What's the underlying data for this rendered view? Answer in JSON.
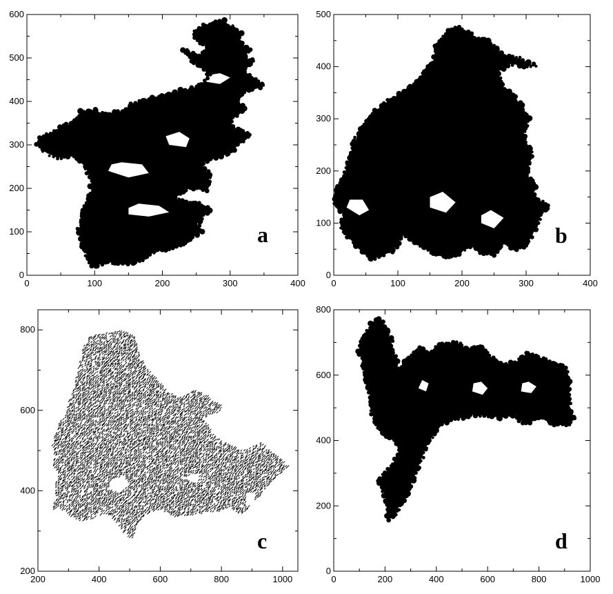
{
  "chart_data": [
    {
      "type": "scatter",
      "panel_label": "a",
      "xlim": [
        0,
        400
      ],
      "ylim": [
        0,
        600
      ],
      "x_ticks": [
        0,
        100,
        200,
        300,
        400
      ],
      "y_ticks": [
        0,
        100,
        200,
        300,
        400,
        500,
        600
      ],
      "x_minor_step": 50,
      "y_minor_step": 50,
      "color": "#000000",
      "outline": [
        [
          95,
          20
        ],
        [
          120,
          30
        ],
        [
          150,
          25
        ],
        [
          170,
          35
        ],
        [
          190,
          55
        ],
        [
          210,
          60
        ],
        [
          230,
          70
        ],
        [
          240,
          85
        ],
        [
          260,
          100
        ],
        [
          250,
          120
        ],
        [
          270,
          150
        ],
        [
          255,
          165
        ],
        [
          235,
          165
        ],
        [
          215,
          180
        ],
        [
          240,
          200
        ],
        [
          265,
          195
        ],
        [
          270,
          230
        ],
        [
          255,
          255
        ],
        [
          275,
          270
        ],
        [
          290,
          275
        ],
        [
          305,
          290
        ],
        [
          330,
          325
        ],
        [
          315,
          335
        ],
        [
          295,
          345
        ],
        [
          305,
          360
        ],
        [
          320,
          385
        ],
        [
          310,
          405
        ],
        [
          330,
          430
        ],
        [
          350,
          435
        ],
        [
          340,
          450
        ],
        [
          320,
          470
        ],
        [
          335,
          490
        ],
        [
          320,
          505
        ],
        [
          330,
          520
        ],
        [
          310,
          540
        ],
        [
          315,
          560
        ],
        [
          290,
          585
        ],
        [
          260,
          575
        ],
        [
          245,
          560
        ],
        [
          250,
          540
        ],
        [
          265,
          525
        ],
        [
          255,
          505
        ],
        [
          230,
          520
        ],
        [
          240,
          500
        ],
        [
          255,
          480
        ],
        [
          270,
          460
        ],
        [
          255,
          435
        ],
        [
          230,
          425
        ],
        [
          210,
          420
        ],
        [
          195,
          410
        ],
        [
          170,
          400
        ],
        [
          155,
          395
        ],
        [
          150,
          380
        ],
        [
          130,
          375
        ],
        [
          115,
          370
        ],
        [
          100,
          380
        ],
        [
          80,
          375
        ],
        [
          70,
          355
        ],
        [
          60,
          345
        ],
        [
          45,
          335
        ],
        [
          30,
          325
        ],
        [
          20,
          315
        ],
        [
          15,
          300
        ],
        [
          25,
          285
        ],
        [
          45,
          270
        ],
        [
          70,
          275
        ],
        [
          85,
          255
        ],
        [
          90,
          235
        ],
        [
          95,
          215
        ],
        [
          95,
          190
        ],
        [
          90,
          175
        ],
        [
          85,
          150
        ],
        [
          80,
          120
        ],
        [
          75,
          100
        ],
        [
          80,
          80
        ],
        [
          85,
          60
        ],
        [
          90,
          40
        ]
      ],
      "holes": [
        [
          [
            120,
            240
          ],
          [
            150,
            225
          ],
          [
            180,
            235
          ],
          [
            170,
            255
          ],
          [
            140,
            260
          ],
          [
            125,
            255
          ]
        ],
        [
          [
            150,
            140
          ],
          [
            180,
            135
          ],
          [
            210,
            145
          ],
          [
            195,
            160
          ],
          [
            165,
            165
          ],
          [
            150,
            155
          ]
        ],
        [
          [
            210,
            300
          ],
          [
            235,
            295
          ],
          [
            240,
            315
          ],
          [
            225,
            330
          ],
          [
            205,
            320
          ]
        ],
        [
          [
            265,
            445
          ],
          [
            285,
            440
          ],
          [
            300,
            455
          ],
          [
            285,
            465
          ],
          [
            265,
            460
          ]
        ]
      ]
    },
    {
      "type": "scatter",
      "panel_label": "b",
      "xlim": [
        0,
        400
      ],
      "ylim": [
        0,
        500
      ],
      "x_ticks": [
        0,
        100,
        200,
        300,
        400
      ],
      "y_ticks": [
        0,
        100,
        200,
        300,
        400,
        500
      ],
      "x_minor_step": 50,
      "y_minor_step": 50,
      "color": "#000000",
      "outline": [
        [
          60,
          30
        ],
        [
          90,
          45
        ],
        [
          110,
          80
        ],
        [
          130,
          60
        ],
        [
          150,
          45
        ],
        [
          170,
          35
        ],
        [
          195,
          40
        ],
        [
          215,
          60
        ],
        [
          230,
          45
        ],
        [
          250,
          40
        ],
        [
          265,
          60
        ],
        [
          280,
          50
        ],
        [
          300,
          55
        ],
        [
          315,
          90
        ],
        [
          325,
          120
        ],
        [
          335,
          135
        ],
        [
          310,
          150
        ],
        [
          315,
          170
        ],
        [
          300,
          195
        ],
        [
          310,
          230
        ],
        [
          295,
          270
        ],
        [
          305,
          300
        ],
        [
          290,
          330
        ],
        [
          265,
          360
        ],
        [
          255,
          390
        ],
        [
          275,
          405
        ],
        [
          315,
          400
        ],
        [
          290,
          415
        ],
        [
          260,
          425
        ],
        [
          245,
          445
        ],
        [
          225,
          455
        ],
        [
          210,
          465
        ],
        [
          195,
          475
        ],
        [
          175,
          465
        ],
        [
          160,
          440
        ],
        [
          155,
          410
        ],
        [
          140,
          390
        ],
        [
          130,
          370
        ],
        [
          115,
          360
        ],
        [
          100,
          345
        ],
        [
          80,
          330
        ],
        [
          60,
          310
        ],
        [
          45,
          285
        ],
        [
          30,
          250
        ],
        [
          20,
          205
        ],
        [
          10,
          175
        ],
        [
          0,
          145
        ],
        [
          15,
          115
        ],
        [
          10,
          90
        ],
        [
          25,
          70
        ],
        [
          40,
          50
        ]
      ],
      "holes": [
        [
          [
            20,
            130
          ],
          [
            40,
            115
          ],
          [
            55,
            125
          ],
          [
            45,
            145
          ],
          [
            25,
            145
          ]
        ],
        [
          [
            150,
            130
          ],
          [
            175,
            120
          ],
          [
            190,
            140
          ],
          [
            170,
            160
          ],
          [
            150,
            150
          ]
        ],
        [
          [
            230,
            100
          ],
          [
            250,
            90
          ],
          [
            265,
            110
          ],
          [
            245,
            125
          ],
          [
            230,
            115
          ]
        ]
      ]
    },
    {
      "type": "scatter",
      "panel_label": "c",
      "xlim": [
        200,
        1050
      ],
      "ylim": [
        200,
        850
      ],
      "x_ticks": [
        200,
        400,
        600,
        800,
        1000
      ],
      "y_ticks": [
        200,
        400,
        600,
        800
      ],
      "x_minor_step": 100,
      "y_minor_step": 100,
      "color": "#000000",
      "render_style": "dotted",
      "outline": [
        [
          240,
          345
        ],
        [
          270,
          360
        ],
        [
          300,
          340
        ],
        [
          340,
          325
        ],
        [
          380,
          330
        ],
        [
          420,
          345
        ],
        [
          460,
          320
        ],
        [
          480,
          295
        ],
        [
          510,
          280
        ],
        [
          525,
          315
        ],
        [
          550,
          340
        ],
        [
          600,
          355
        ],
        [
          650,
          335
        ],
        [
          700,
          340
        ],
        [
          750,
          345
        ],
        [
          800,
          350
        ],
        [
          830,
          360
        ],
        [
          860,
          340
        ],
        [
          880,
          350
        ],
        [
          900,
          370
        ],
        [
          930,
          390
        ],
        [
          960,
          420
        ],
        [
          990,
          440
        ],
        [
          1020,
          460
        ],
        [
          1000,
          475
        ],
        [
          960,
          500
        ],
        [
          930,
          520
        ],
        [
          900,
          510
        ],
        [
          870,
          500
        ],
        [
          840,
          510
        ],
        [
          810,
          520
        ],
        [
          780,
          535
        ],
        [
          760,
          560
        ],
        [
          740,
          575
        ],
        [
          760,
          590
        ],
        [
          790,
          595
        ],
        [
          810,
          610
        ],
        [
          780,
          620
        ],
        [
          750,
          640
        ],
        [
          710,
          650
        ],
        [
          690,
          640
        ],
        [
          660,
          630
        ],
        [
          620,
          650
        ],
        [
          590,
          680
        ],
        [
          560,
          700
        ],
        [
          530,
          740
        ],
        [
          520,
          780
        ],
        [
          500,
          790
        ],
        [
          470,
          800
        ],
        [
          440,
          795
        ],
        [
          400,
          790
        ],
        [
          370,
          785
        ],
        [
          350,
          760
        ],
        [
          340,
          730
        ],
        [
          330,
          700
        ],
        [
          320,
          660
        ],
        [
          300,
          620
        ],
        [
          290,
          590
        ],
        [
          270,
          570
        ],
        [
          260,
          545
        ],
        [
          245,
          515
        ],
        [
          255,
          490
        ],
        [
          250,
          460
        ],
        [
          270,
          440
        ],
        [
          255,
          415
        ],
        [
          260,
          385
        ]
      ],
      "holes": [
        [
          [
            430,
            405
          ],
          [
            470,
            395
          ],
          [
            500,
            415
          ],
          [
            480,
            435
          ],
          [
            440,
            430
          ]
        ],
        [
          [
            880,
            360
          ],
          [
            910,
            370
          ],
          [
            905,
            395
          ],
          [
            880,
            390
          ]
        ],
        [
          [
            690,
            425
          ],
          [
            720,
            420
          ],
          [
            730,
            440
          ],
          [
            700,
            445
          ]
        ]
      ]
    },
    {
      "type": "scatter",
      "panel_label": "d",
      "xlim": [
        0,
        1000
      ],
      "ylim": [
        0,
        800
      ],
      "x_ticks": [
        0,
        200,
        400,
        600,
        800,
        1000
      ],
      "y_ticks": [
        0,
        200,
        400,
        600,
        800
      ],
      "x_minor_step": 100,
      "y_minor_step": 100,
      "color": "#000000",
      "outline": [
        [
          215,
          160
        ],
        [
          240,
          170
        ],
        [
          255,
          200
        ],
        [
          275,
          220
        ],
        [
          290,
          250
        ],
        [
          310,
          280
        ],
        [
          330,
          320
        ],
        [
          360,
          380
        ],
        [
          390,
          420
        ],
        [
          410,
          445
        ],
        [
          450,
          460
        ],
        [
          500,
          470
        ],
        [
          550,
          480
        ],
        [
          600,
          475
        ],
        [
          650,
          470
        ],
        [
          700,
          475
        ],
        [
          750,
          450
        ],
        [
          800,
          470
        ],
        [
          860,
          450
        ],
        [
          905,
          445
        ],
        [
          940,
          465
        ],
        [
          925,
          490
        ],
        [
          915,
          520
        ],
        [
          920,
          560
        ],
        [
          910,
          600
        ],
        [
          905,
          625
        ],
        [
          870,
          630
        ],
        [
          840,
          645
        ],
        [
          800,
          655
        ],
        [
          760,
          670
        ],
        [
          710,
          640
        ],
        [
          660,
          630
        ],
        [
          620,
          650
        ],
        [
          590,
          675
        ],
        [
          560,
          690
        ],
        [
          520,
          680
        ],
        [
          480,
          700
        ],
        [
          440,
          695
        ],
        [
          400,
          690
        ],
        [
          380,
          660
        ],
        [
          340,
          680
        ],
        [
          310,
          670
        ],
        [
          280,
          640
        ],
        [
          250,
          620
        ],
        [
          225,
          700
        ],
        [
          200,
          750
        ],
        [
          180,
          770
        ],
        [
          145,
          755
        ],
        [
          120,
          720
        ],
        [
          100,
          670
        ],
        [
          115,
          630
        ],
        [
          130,
          580
        ],
        [
          145,
          530
        ],
        [
          150,
          480
        ],
        [
          175,
          430
        ],
        [
          200,
          420
        ],
        [
          230,
          400
        ],
        [
          260,
          380
        ],
        [
          250,
          360
        ],
        [
          240,
          340
        ],
        [
          220,
          320
        ],
        [
          200,
          300
        ],
        [
          175,
          280
        ],
        [
          190,
          255
        ],
        [
          200,
          230
        ],
        [
          205,
          200
        ]
      ],
      "holes": [
        [
          [
            540,
            550
          ],
          [
            580,
            540
          ],
          [
            600,
            560
          ],
          [
            575,
            580
          ],
          [
            545,
            575
          ]
        ],
        [
          [
            730,
            550
          ],
          [
            770,
            545
          ],
          [
            790,
            565
          ],
          [
            760,
            580
          ],
          [
            735,
            575
          ]
        ],
        [
          [
            330,
            560
          ],
          [
            360,
            550
          ],
          [
            370,
            575
          ],
          [
            345,
            585
          ]
        ]
      ]
    }
  ]
}
